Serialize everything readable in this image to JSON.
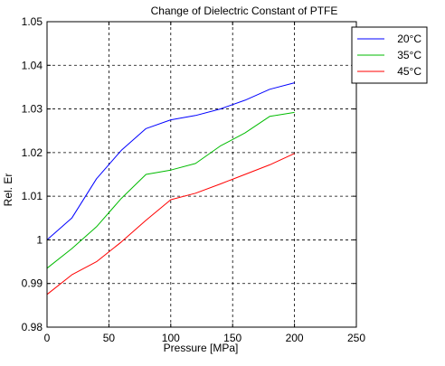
{
  "chart_data": {
    "type": "line",
    "title": "Change of Dielectric Constant of PTFE",
    "xlabel": "Pressure [MPa]",
    "ylabel": "Rel. Er",
    "xlim": [
      0,
      250
    ],
    "ylim": [
      0.98,
      1.05
    ],
    "xticks": [
      0,
      50,
      100,
      150,
      200,
      250
    ],
    "xtick_labels": [
      "0",
      "50",
      "100",
      "150",
      "200",
      "250"
    ],
    "yticks": [
      0.98,
      0.99,
      1.0,
      1.01,
      1.02,
      1.03,
      1.04,
      1.05
    ],
    "ytick_labels": [
      "0.98",
      "0.99",
      "1",
      "1.01",
      "1.02",
      "1.03",
      "1.04",
      "1.05"
    ],
    "grid": true,
    "legend_position": "top-right",
    "series": [
      {
        "name": "20°C",
        "color": "#0000ff",
        "x": [
          0,
          20,
          40,
          60,
          80,
          100,
          120,
          140,
          160,
          180,
          200
        ],
        "y": [
          1.0,
          1.005,
          1.014,
          1.0205,
          1.0255,
          1.0275,
          1.0285,
          1.03,
          1.032,
          1.0345,
          1.036
        ]
      },
      {
        "name": "35°C",
        "color": "#00bb00",
        "x": [
          0,
          20,
          40,
          60,
          80,
          100,
          120,
          140,
          160,
          180,
          200
        ],
        "y": [
          0.9935,
          0.998,
          1.003,
          1.0095,
          1.015,
          1.016,
          1.0175,
          1.0215,
          1.0245,
          1.0283,
          1.0292
        ]
      },
      {
        "name": "45°C",
        "color": "#ff0000",
        "x": [
          0,
          20,
          40,
          60,
          80,
          100,
          120,
          140,
          160,
          180,
          200
        ],
        "y": [
          0.9875,
          0.992,
          0.995,
          0.9995,
          1.0045,
          1.0092,
          1.0107,
          1.0128,
          1.015,
          1.0172,
          1.0198
        ]
      }
    ]
  }
}
